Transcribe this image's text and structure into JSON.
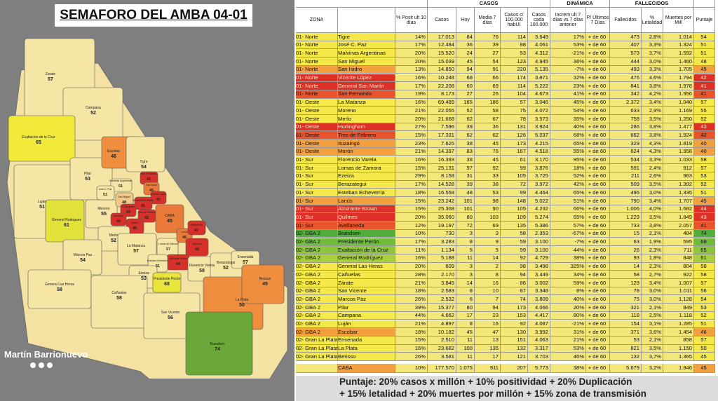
{
  "map": {
    "title": "SEMAFORO DEL AMBA 04-01",
    "brand": "Martín Barrionuevo",
    "regions": [
      {
        "name": "Zarate",
        "score": 57,
        "color": "#f6e6a6"
      },
      {
        "name": "Campana",
        "score": 52,
        "color": "#f6e6a6"
      },
      {
        "name": "Exaltacion de la Cruz",
        "score": 65,
        "color": "#f2e93a"
      },
      {
        "name": "Luján",
        "score": 51,
        "color": "#f6e6a6"
      },
      {
        "name": "Pilar",
        "score": 53,
        "color": "#f6e6a6"
      },
      {
        "name": "Escobar",
        "score": 46,
        "color": "#ee8e3e"
      },
      {
        "name": "Tigre",
        "score": 54,
        "color": "#f6e6a6"
      },
      {
        "name": "General Rodriguez",
        "score": 61,
        "color": "#e3e23a"
      },
      {
        "name": "Moreno",
        "score": 55,
        "color": "#f6e6a6"
      },
      {
        "name": "Malvinas Argentinas",
        "score": 51,
        "color": "#f6e6a6"
      },
      {
        "name": "Jose C. Paz",
        "score": 51,
        "color": "#f6e6a6"
      },
      {
        "name": "San Miguel",
        "score": 48,
        "color": "#f3c98a"
      },
      {
        "name": "San Fernando",
        "score": 41,
        "color": "#d6302a"
      },
      {
        "name": "San Isidro",
        "score": 45,
        "color": "#ea7a3a"
      },
      {
        "name": "Vicente Lopez",
        "score": 42,
        "color": "#d6302a"
      },
      {
        "name": "General San Martin",
        "score": 41,
        "color": "#d6302a"
      },
      {
        "name": "Hurlingham",
        "score": 43,
        "color": "#d6302a"
      },
      {
        "name": "Tres de Febrero",
        "score": 42,
        "color": "#d6302a"
      },
      {
        "name": "Ituzaingo",
        "score": 40,
        "color": "#d6302a"
      },
      {
        "name": "Moron",
        "score": 40,
        "color": "#d6302a"
      },
      {
        "name": "Merlo",
        "score": 52,
        "color": "#f6e6a6"
      },
      {
        "name": "CABA",
        "score": 45,
        "color": "#ea7a3a"
      },
      {
        "name": "Marcos Paz",
        "score": 54,
        "color": "#f6e6a6"
      },
      {
        "name": "La Matanza",
        "score": 57,
        "color": "#f6e6a6"
      },
      {
        "name": "Lomas de Zamora",
        "score": 57,
        "color": "#f6e6a6"
      },
      {
        "name": "Lanus",
        "score": 45,
        "color": "#ea7a3a"
      },
      {
        "name": "Avellaneda",
        "score": 41,
        "color": "#d6302a"
      },
      {
        "name": "Quilmes",
        "score": 43,
        "color": "#d6302a"
      },
      {
        "name": "Almirante Brown",
        "score": 44,
        "color": "#d6302a"
      },
      {
        "name": "Esteban Echeverria",
        "score": 51,
        "color": "#f6e6a6"
      },
      {
        "name": "Ezeiza",
        "score": 53,
        "color": "#f6e6a6"
      },
      {
        "name": "Florencio Varela",
        "score": 58,
        "color": "#f6e6a6"
      },
      {
        "name": "Berazategui",
        "score": 52,
        "color": "#f6e6a6"
      },
      {
        "name": "General Las Heras",
        "score": 58,
        "color": "#f6e6a6"
      },
      {
        "name": "Cañuelas",
        "score": 58,
        "color": "#f6e6a6"
      },
      {
        "name": "Presidente Perón",
        "score": 68,
        "color": "#e9e53a"
      },
      {
        "name": "San Vicente",
        "score": 56,
        "color": "#f6e6a6"
      },
      {
        "name": "Ensenada",
        "score": 57,
        "color": "#f6e6a6"
      },
      {
        "name": "La Plata",
        "score": 50,
        "color": "#ee8e3e"
      },
      {
        "name": "Berisso",
        "score": 45,
        "color": "#ee8e3e"
      },
      {
        "name": "Brandsen",
        "score": 74,
        "color": "#6aa83a"
      }
    ]
  },
  "table": {
    "group_headers": [
      "CASOS",
      "DINÁMICA",
      "FALLECIDOS"
    ],
    "zona_header": "ZONA",
    "headers": [
      "% Posit ult 10 días",
      "Casos",
      "Hoy",
      "Media 7 días",
      "Casos c/ 100.000 habUI",
      "Casos cada 100.000",
      "Increm ult 7 días vs 7 días anterior",
      "P/ Últimos 7 Días",
      "Fallecidos",
      "% Letalidad",
      "Muertes por Mill",
      "Puntaje"
    ],
    "cell_color": "#f3e77a",
    "rows": [
      {
        "zona": "01- Norte",
        "name": "Tigre",
        "cells": [
          "14%",
          "17.013",
          "84",
          "76",
          "114",
          "3.649",
          "17%",
          "+ de 60",
          "473",
          "2,8%",
          "1.014",
          "54"
        ],
        "color": "#f4e84a"
      },
      {
        "zona": "01- Norte",
        "name": "José C. Paz",
        "cells": [
          "17%",
          "12.484",
          "36",
          "39",
          "88",
          "4.061",
          "53%",
          "+ de 60",
          "407",
          "3,3%",
          "1.324",
          "51"
        ],
        "color": "#f4e84a"
      },
      {
        "zona": "01- Norte",
        "name": "Malvinas Argentinas",
        "cells": [
          "20%",
          "15.520",
          "24",
          "27",
          "53",
          "4.312",
          "-21%",
          "+ de 60",
          "573",
          "3,7%",
          "1.592",
          "51"
        ],
        "color": "#f4e84a"
      },
      {
        "zona": "01- Norte",
        "name": "San Miguel",
        "cells": [
          "20%",
          "15.039",
          "45",
          "54",
          "123",
          "4.945",
          "36%",
          "+ de 60",
          "444",
          "3,0%",
          "1.460",
          "48"
        ],
        "color": "#f4e84a"
      },
      {
        "zona": "01- Norte",
        "name": "San Isidro",
        "cells": [
          "13%",
          "14.850",
          "94",
          "91",
          "220",
          "5.135",
          "-7%",
          "+ de 60",
          "493",
          "3,3%",
          "1.705",
          "45"
        ],
        "color": "#f2a040"
      },
      {
        "zona": "01- Norte",
        "name": "Vicente López",
        "cells": [
          "16%",
          "10.248",
          "68",
          "66",
          "174",
          "3.871",
          "32%",
          "+ de 60",
          "475",
          "4,6%",
          "1.794",
          "42"
        ],
        "color": "#dd3128"
      },
      {
        "zona": "01- Norte",
        "name": "General San Martín",
        "cells": [
          "17%",
          "22.208",
          "60",
          "69",
          "114",
          "5.222",
          "23%",
          "+ de 60",
          "841",
          "3,8%",
          "1.978",
          "41"
        ],
        "color": "#dd3128"
      },
      {
        "zona": "01- Norte",
        "name": "San Fernando",
        "cells": [
          "19%",
          "8.173",
          "27",
          "26",
          "104",
          "4.673",
          "41%",
          "+ de 60",
          "342",
          "4,2%",
          "1.956",
          "41"
        ],
        "color": "#e8552c"
      },
      {
        "zona": "01- Oeste",
        "name": "La Matanza",
        "cells": [
          "16%",
          "69.489",
          "165",
          "186",
          "57",
          "3.046",
          "45%",
          "+ de 60",
          "2.372",
          "3,4%",
          "1.040",
          "57"
        ],
        "color": "#f4e84a"
      },
      {
        "zona": "01- Oeste",
        "name": "Moreno",
        "cells": [
          "21%",
          "22.055",
          "52",
          "58",
          "75",
          "4.072",
          "54%",
          "+ de 60",
          "633",
          "2,9%",
          "1.169",
          "55"
        ],
        "color": "#f4e84a"
      },
      {
        "zona": "01- Oeste",
        "name": "Merlo",
        "cells": [
          "20%",
          "21.668",
          "62",
          "67",
          "78",
          "3.573",
          "35%",
          "+ de 60",
          "758",
          "3,5%",
          "1.250",
          "52"
        ],
        "color": "#f4e84a"
      },
      {
        "zona": "01- Oeste",
        "name": "Hurlingham",
        "cells": [
          "27%",
          "7.596",
          "39",
          "36",
          "131",
          "3.924",
          "40%",
          "+ de 60",
          "286",
          "3,8%",
          "1.477",
          "43"
        ],
        "color": "#dd3128"
      },
      {
        "zona": "01- Oeste",
        "name": "Tres de Febrero",
        "cells": [
          "15%",
          "17.331",
          "62",
          "62",
          "126",
          "5.037",
          "68%",
          "+ de 60",
          "662",
          "3,8%",
          "1.924",
          "42"
        ],
        "color": "#e8552c"
      },
      {
        "zona": "01- Oeste",
        "name": "Ituzaingó",
        "cells": [
          "23%",
          "7.625",
          "38",
          "45",
          "173",
          "4.215",
          "65%",
          "+ de 60",
          "329",
          "4,3%",
          "1.819",
          "40"
        ],
        "color": "#f2a040"
      },
      {
        "zona": "01- Oeste",
        "name": "Morón",
        "cells": [
          "21%",
          "14.397",
          "83",
          "76",
          "167",
          "4.518",
          "55%",
          "+ de 60",
          "624",
          "4,3%",
          "1.958",
          "40"
        ],
        "color": "#f2a040"
      },
      {
        "zona": "01- Sur",
        "name": "Florencio Varela",
        "cells": [
          "16%",
          "16.393",
          "38",
          "45",
          "61",
          "3.170",
          "95%",
          "+ de 60",
          "534",
          "3,3%",
          "1.033",
          "58"
        ],
        "color": "#f4e84a"
      },
      {
        "zona": "01- Sur",
        "name": "Lomas de Zamora",
        "cells": [
          "15%",
          "25.131",
          "97",
          "92",
          "99",
          "3.876",
          "18%",
          "+ de 60",
          "591",
          "2,4%",
          "912",
          "57"
        ],
        "color": "#f4e84a"
      },
      {
        "zona": "01- Sur",
        "name": "Ezeiza",
        "cells": [
          "29%",
          "8.158",
          "31",
          "33",
          "105",
          "3.725",
          "52%",
          "+ de 60",
          "211",
          "2,6%",
          "963",
          "53"
        ],
        "color": "#f4e84a"
      },
      {
        "zona": "01- Sur",
        "name": "Berazategui",
        "cells": [
          "17%",
          "14.528",
          "39",
          "38",
          "72",
          "3.972",
          "42%",
          "+ de 60",
          "509",
          "3,5%",
          "1.392",
          "52"
        ],
        "color": "#f4e84a"
      },
      {
        "zona": "01- Sur",
        "name": "Esteban Echeverría",
        "cells": [
          "18%",
          "16.558",
          "48",
          "53",
          "99",
          "4.464",
          "65%",
          "+ de 60",
          "495",
          "3,0%",
          "1.335",
          "51"
        ],
        "color": "#f4e84a"
      },
      {
        "zona": "01- Sur",
        "name": "Lanús",
        "cells": [
          "15%",
          "23.242",
          "101",
          "98",
          "148",
          "5.022",
          "51%",
          "+ de 60",
          "790",
          "3,4%",
          "1.707",
          "45"
        ],
        "color": "#f2a040"
      },
      {
        "zona": "01- Sur",
        "name": "Almirante Brown",
        "cells": [
          "15%",
          "25.308",
          "101",
          "90",
          "105",
          "4.232",
          "66%",
          "+ de 60",
          "1.006",
          "4,0%",
          "1.682",
          "44"
        ],
        "color": "#dd3128"
      },
      {
        "zona": "01- Sur",
        "name": "Quilmes",
        "cells": [
          "20%",
          "35.060",
          "80",
          "103",
          "109",
          "5.274",
          "65%",
          "+ de 60",
          "1.229",
          "3,5%",
          "1.849",
          "43"
        ],
        "color": "#dd3128"
      },
      {
        "zona": "01- Sur",
        "name": "Avellaneda",
        "cells": [
          "12%",
          "19.197",
          "72",
          "69",
          "135",
          "5.386",
          "57%",
          "+ de 60",
          "733",
          "3,8%",
          "2.057",
          "41"
        ],
        "color": "#e8552c"
      },
      {
        "zona": "02- GBA 2",
        "name": "Brandsen",
        "cells": [
          "10%",
          "730",
          "3",
          "3",
          "58",
          "2.353",
          "-67%",
          "+ de 60",
          "15",
          "2,1%",
          "484",
          "74"
        ],
        "color": "#4fae3c"
      },
      {
        "zona": "02- GBA 2",
        "name": "Presidente Perón",
        "cells": [
          "17%",
          "3.283",
          "8",
          "9",
          "59",
          "3.100",
          "-7%",
          "+ de 60",
          "63",
          "1,9%",
          "595",
          "68"
        ],
        "color": "#6fbb3c"
      },
      {
        "zona": "02- GBA 2",
        "name": "Exaltación de la Cruz",
        "cells": [
          "11%",
          "1.134",
          "5",
          "5",
          "99",
          "3.100",
          "44%",
          "+ de 60",
          "26",
          "2,3%",
          "711",
          "65"
        ],
        "color": "#8cc63e"
      },
      {
        "zona": "02- GBA 2",
        "name": "General Rodríguez",
        "cells": [
          "16%",
          "5.188",
          "11",
          "14",
          "92",
          "4.729",
          "38%",
          "+ de 60",
          "93",
          "1,8%",
          "848",
          "61"
        ],
        "color": "#a8cf3e"
      },
      {
        "zona": "02- GBA 2",
        "name": "General Las Heras",
        "cells": [
          "20%",
          "609",
          "3",
          "2",
          "98",
          "3.498",
          "325%",
          "+ de 60",
          "14",
          "2,3%",
          "804",
          "58"
        ],
        "color": "#f4e84a"
      },
      {
        "zona": "02- GBA 2",
        "name": "Cañuelas",
        "cells": [
          "28%",
          "2.170",
          "3",
          "8",
          "94",
          "3.449",
          "34%",
          "+ de 60",
          "58",
          "2,7%",
          "922",
          "58"
        ],
        "color": "#f4e84a"
      },
      {
        "zona": "02- GBA 2",
        "name": "Zárate",
        "cells": [
          "21%",
          "3.845",
          "14",
          "16",
          "86",
          "3.002",
          "59%",
          "+ de 60",
          "129",
          "3,4%",
          "1.007",
          "57"
        ],
        "color": "#f4e84a"
      },
      {
        "zona": "02- GBA 2",
        "name": "San Vicente",
        "cells": [
          "18%",
          "2.583",
          "8",
          "10",
          "87",
          "3.348",
          "8%",
          "+ de 60",
          "78",
          "3,0%",
          "1.011",
          "56"
        ],
        "color": "#f4e84a"
      },
      {
        "zona": "02- GBA 2",
        "name": "Marcos Paz",
        "cells": [
          "26%",
          "2.532",
          "6",
          "7",
          "74",
          "3.809",
          "40%",
          "+ de 60",
          "75",
          "3,0%",
          "1.128",
          "54"
        ],
        "color": "#f4e84a"
      },
      {
        "zona": "02- GBA 2",
        "name": "Pilar",
        "cells": [
          "39%",
          "15.377",
          "80",
          "94",
          "173",
          "4.066",
          "20%",
          "+ de 60",
          "321",
          "2,1%",
          "849",
          "53"
        ],
        "color": "#f4e84a"
      },
      {
        "zona": "02- GBA 2",
        "name": "Campana",
        "cells": [
          "44%",
          "4.662",
          "17",
          "23",
          "153",
          "4.417",
          "80%",
          "+ de 60",
          "118",
          "2,5%",
          "1.118",
          "52"
        ],
        "color": "#f4e84a"
      },
      {
        "zona": "02- GBA 2",
        "name": "Luján",
        "cells": [
          "21%",
          "4.897",
          "8",
          "16",
          "92",
          "4.087",
          "-21%",
          "+ de 60",
          "154",
          "3,1%",
          "1.285",
          "51"
        ],
        "color": "#f4e84a"
      },
      {
        "zona": "02- GBA 2",
        "name": "Escobar",
        "cells": [
          "18%",
          "10.182",
          "45",
          "47",
          "130",
          "3.992",
          "31%",
          "+ de 60",
          "371",
          "3,6%",
          "1.454",
          "46"
        ],
        "color": "#f2a040"
      },
      {
        "zona": "02- Gran La Plata",
        "name": "Ensenada",
        "cells": [
          "15%",
          "2.510",
          "11",
          "13",
          "151",
          "4.063",
          "21%",
          "+ de 60",
          "53",
          "2,1%",
          "858",
          "57"
        ],
        "color": "#f4e84a"
      },
      {
        "zona": "02- Gran La Plata",
        "name": "La Plata",
        "cells": [
          "16%",
          "23.682",
          "100",
          "135",
          "132",
          "3.317",
          "53%",
          "+ de 60",
          "821",
          "3,5%",
          "1.150",
          "50"
        ],
        "color": "#f4e84a"
      },
      {
        "zona": "02- Gran La Plata",
        "name": "Berisso",
        "cells": [
          "26%",
          "3.581",
          "11",
          "17",
          "121",
          "3.703",
          "46%",
          "+ de 60",
          "132",
          "3,7%",
          "1.365",
          "45"
        ],
        "color": "#f4e84a"
      }
    ],
    "total_row": {
      "name": "CABA",
      "cells": [
        "10%",
        "177.570",
        "1.075",
        "911",
        "207",
        "5.773",
        "38%",
        "+ de 60",
        "5.679",
        "3,2%",
        "1.846",
        "45"
      ],
      "color": "#f2a040"
    }
  },
  "footer": [
    "Puntaje: 20% casos x millón + 10% positividad + 20% Duplicación",
    "+ 15% letalidad + 20% muertes por millón + 15% zona de transmisión"
  ]
}
